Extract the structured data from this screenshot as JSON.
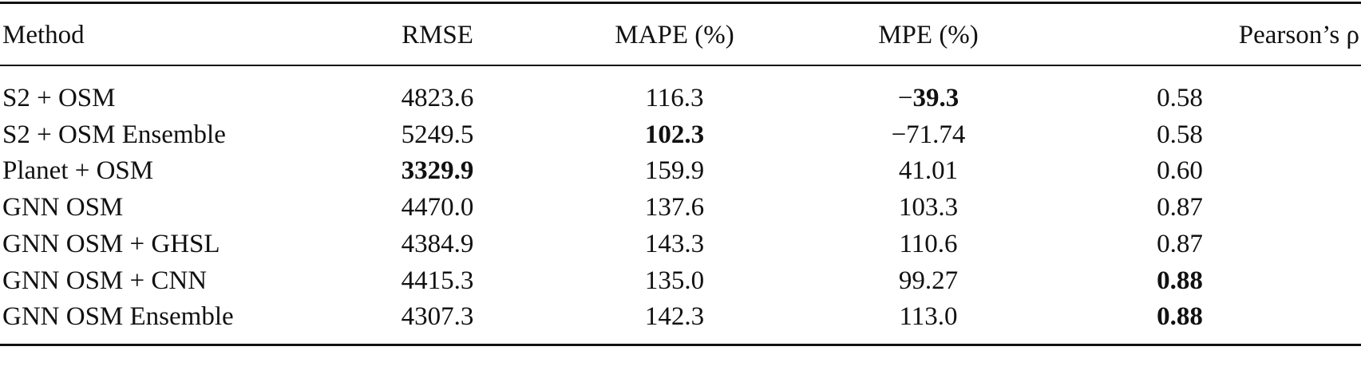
{
  "table": {
    "header": [
      "Method",
      "RMSE",
      "MAPE (%)",
      "MPE (%)",
      "Pearson’s ρ"
    ],
    "rows": [
      [
        "S2 + OSM",
        "4823.6",
        "116.3",
        "−39.3",
        "0.58"
      ],
      [
        "S2 + OSM Ensemble",
        "5249.5",
        "102.3",
        "−71.74",
        "0.58"
      ],
      [
        "Planet + OSM",
        "3329.9",
        "159.9",
        "41.01",
        "0.60"
      ],
      [
        "GNN OSM",
        "4470.0",
        "137.6",
        "103.3",
        "0.87"
      ],
      [
        "GNN OSM + GHSL",
        "4384.9",
        "143.3",
        "110.6",
        "0.87"
      ],
      [
        "GNN OSM + CNN",
        "4415.3",
        "135.0",
        "99.27",
        "0.88"
      ],
      [
        "GNN OSM Ensemble",
        "4307.3",
        "142.3",
        "113.0",
        "0.88"
      ]
    ],
    "bold": [
      [
        false,
        false,
        false,
        true,
        false
      ],
      [
        false,
        false,
        true,
        false,
        false
      ],
      [
        false,
        true,
        false,
        false,
        false
      ],
      [
        false,
        false,
        false,
        false,
        false
      ],
      [
        false,
        false,
        false,
        false,
        false
      ],
      [
        false,
        false,
        false,
        false,
        true
      ],
      [
        false,
        false,
        false,
        false,
        true
      ]
    ]
  }
}
